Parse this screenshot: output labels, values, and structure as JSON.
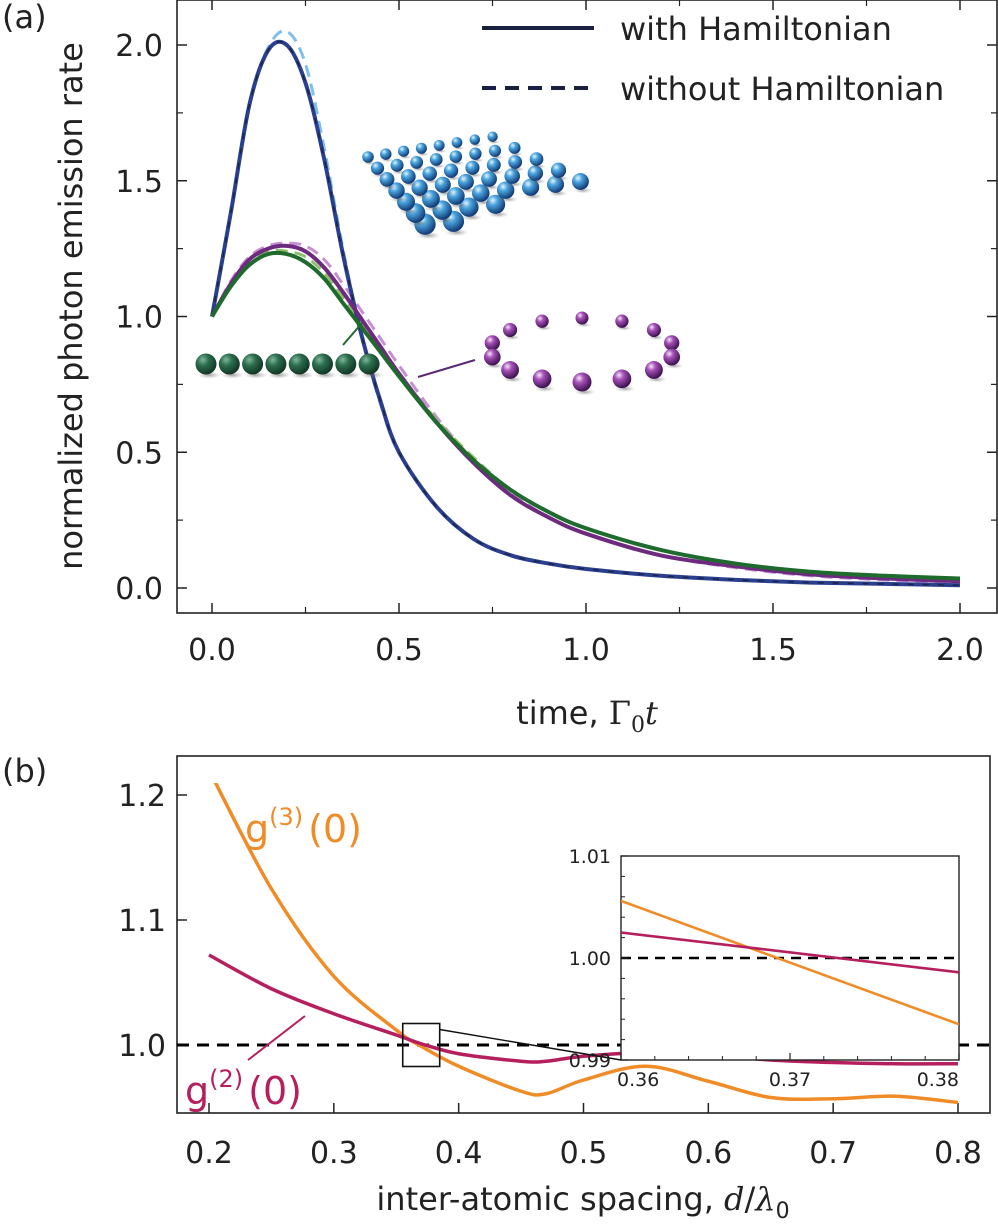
{
  "chart_data": [
    {
      "panel": "(a)",
      "type": "line",
      "title": "",
      "xlabel": "time, Γ0t",
      "xlabel_parts": {
        "prefix": "time, ",
        "gamma": "Γ",
        "sub": "0",
        "var": "t"
      },
      "ylabel": "normalized photon emission rate",
      "xlim": [
        -0.1,
        2.1
      ],
      "ylim": [
        -0.1,
        2.15
      ],
      "xticks": [
        0.0,
        0.5,
        1.0,
        1.5,
        2.0
      ],
      "xtick_labels": [
        "0.0",
        "0.5",
        "1.0",
        "1.5",
        "2.0"
      ],
      "yticks": [
        0.0,
        0.5,
        1.0,
        1.5,
        2.0
      ],
      "ytick_labels": [
        "0.0",
        "0.5",
        "1.0",
        "1.5",
        "2.0"
      ],
      "legend": [
        {
          "label": "with Hamiltonian",
          "style": "solid"
        },
        {
          "label": "without Hamiltonian",
          "style": "dashed"
        }
      ],
      "legend_position": "top-right",
      "x": [
        0.0,
        0.05,
        0.1,
        0.15,
        0.2,
        0.25,
        0.3,
        0.35,
        0.4,
        0.45,
        0.5,
        0.6,
        0.7,
        0.8,
        0.9,
        1.0,
        1.2,
        1.4,
        1.6,
        1.8,
        2.0
      ],
      "series": [
        {
          "name": "square array, with Hamiltonian",
          "geometry": "square array",
          "style": "solid",
          "color": "#2b3f8f",
          "values": [
            1.0,
            1.38,
            1.78,
            1.98,
            2.0,
            1.86,
            1.58,
            1.23,
            0.93,
            0.69,
            0.5,
            0.3,
            0.18,
            0.12,
            0.09,
            0.07,
            0.045,
            0.03,
            0.02,
            0.015,
            0.01
          ]
        },
        {
          "name": "square array, without Hamiltonian",
          "geometry": "square array",
          "style": "dashed",
          "color": "#7fbfea",
          "values": [
            1.0,
            1.38,
            1.78,
            1.99,
            2.05,
            1.93,
            1.62,
            1.25,
            0.93,
            0.68,
            0.5,
            0.3,
            0.18,
            0.12,
            0.09,
            0.07,
            0.045,
            0.03,
            0.02,
            0.015,
            0.01
          ]
        },
        {
          "name": "ring, with Hamiltonian",
          "geometry": "ring",
          "style": "solid",
          "color": "#6e2a7f",
          "values": [
            1.0,
            1.12,
            1.21,
            1.25,
            1.26,
            1.24,
            1.18,
            1.09,
            0.99,
            0.89,
            0.79,
            0.61,
            0.46,
            0.34,
            0.26,
            0.2,
            0.12,
            0.08,
            0.05,
            0.035,
            0.025
          ]
        },
        {
          "name": "ring, without Hamiltonian",
          "geometry": "ring",
          "style": "dashed",
          "color": "#c68fd1",
          "values": [
            1.0,
            1.13,
            1.22,
            1.26,
            1.27,
            1.26,
            1.21,
            1.12,
            1.02,
            0.92,
            0.82,
            0.63,
            0.47,
            0.35,
            0.26,
            0.2,
            0.12,
            0.075,
            0.045,
            0.03,
            0.02
          ]
        },
        {
          "name": "chain, with Hamiltonian",
          "geometry": "linear chain",
          "style": "solid",
          "color": "#1f6b2e",
          "values": [
            1.0,
            1.11,
            1.19,
            1.23,
            1.23,
            1.2,
            1.14,
            1.05,
            0.96,
            0.87,
            0.78,
            0.61,
            0.47,
            0.36,
            0.28,
            0.22,
            0.14,
            0.09,
            0.06,
            0.045,
            0.035
          ]
        },
        {
          "name": "chain, without Hamiltonian",
          "geometry": "linear chain",
          "style": "dashed",
          "color": "#8fbf6a",
          "values": [
            1.0,
            1.11,
            1.19,
            1.24,
            1.24,
            1.22,
            1.16,
            1.07,
            0.98,
            0.88,
            0.79,
            0.62,
            0.48,
            0.36,
            0.28,
            0.22,
            0.14,
            0.09,
            0.06,
            0.04,
            0.03
          ]
        }
      ],
      "annotations": [
        "square array of atoms (blue spheres)",
        "ring of atoms (purple spheres)",
        "linear chain of atoms (green spheres)"
      ]
    },
    {
      "panel": "(b)",
      "type": "line",
      "title": "",
      "xlabel": "inter-atomic spacing, d/λ0",
      "xlabel_parts": {
        "prefix": "inter-atomic spacing, ",
        "var": "d",
        "slash": "/",
        "lambda": "λ",
        "sub": "0"
      },
      "ylabel": "",
      "xlim": [
        0.17,
        0.83
      ],
      "ylim": [
        0.945,
        1.227
      ],
      "xticks": [
        0.2,
        0.3,
        0.4,
        0.5,
        0.6,
        0.7,
        0.8
      ],
      "xtick_labels": [
        "0.2",
        "0.3",
        "0.4",
        "0.5",
        "0.6",
        "0.7",
        "0.8"
      ],
      "yticks": [
        1.0,
        1.1,
        1.2
      ],
      "ytick_labels": [
        "1.0",
        "1.1",
        "1.2"
      ],
      "reference_line": {
        "y": 1.0,
        "style": "dashed",
        "color": "#000000"
      },
      "x": [
        0.2,
        0.25,
        0.3,
        0.35,
        0.37,
        0.4,
        0.45,
        0.47,
        0.5,
        0.55,
        0.6,
        0.65,
        0.7,
        0.75,
        0.8
      ],
      "series": [
        {
          "name": "g(3)(0)",
          "label_main": "g",
          "label_sup": "(3)",
          "label_arg": "(0)",
          "color": "#f08c28",
          "values": [
            1.22,
            1.125,
            1.055,
            1.012,
            0.999,
            0.983,
            0.963,
            0.961,
            0.972,
            0.983,
            0.971,
            0.958,
            0.957,
            0.959,
            0.954
          ]
        },
        {
          "name": "g(2)(0)",
          "label_main": "g",
          "label_sup": "(2)",
          "label_arg": "(0)",
          "color": "#b51f5e",
          "values": [
            1.072,
            1.045,
            1.025,
            1.008,
            1.001,
            0.993,
            0.987,
            0.987,
            0.991,
            0.994,
            0.992,
            0.988,
            0.986,
            0.985,
            0.985
          ]
        }
      ],
      "inset": {
        "xlim": [
          0.36,
          0.38
        ],
        "ylim": [
          0.99,
          1.01
        ],
        "xticks": [
          0.36,
          0.37,
          0.38
        ],
        "xtick_labels": [
          "0.36",
          "0.37",
          "0.38"
        ],
        "yticks": [
          0.99,
          1.0,
          1.01
        ],
        "ytick_labels": [
          "0.99",
          "1.00",
          "1.01"
        ],
        "x": [
          0.36,
          0.38
        ],
        "series": [
          {
            "name": "g(3)(0)",
            "color": "#f08c28",
            "values": [
              1.0056,
              0.9935
            ]
          },
          {
            "name": "g(2)(0)",
            "color": "#b51f5e",
            "values": [
              1.0025,
              0.9986
            ]
          }
        ],
        "reference_line": {
          "y": 1.0,
          "style": "dashed",
          "color": "#000000"
        },
        "zoom_box": {
          "x": [
            0.36,
            0.38
          ],
          "y": [
            0.99,
            1.01
          ]
        }
      }
    }
  ]
}
